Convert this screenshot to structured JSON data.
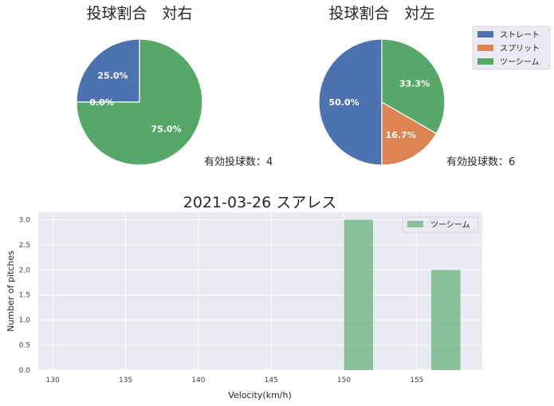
{
  "chart_data": [
    {
      "type": "pie",
      "title": "投球割合　対右",
      "labels": [
        "ストレート",
        "スプリット",
        "ツーシーム"
      ],
      "values": [
        25.0,
        0.0,
        75.0
      ],
      "value_labels": [
        "25.0%",
        "0.0%",
        "75.0%"
      ],
      "note": "有効投球数：4",
      "colors": [
        "#4c72b0",
        "#dd8452",
        "#55a868"
      ]
    },
    {
      "type": "pie",
      "title": "投球割合　対左",
      "labels": [
        "ストレート",
        "スプリット",
        "ツーシーム"
      ],
      "values": [
        50.0,
        16.7,
        33.3
      ],
      "value_labels": [
        "50.0%",
        "16.7%",
        "33.3%"
      ],
      "note": "有効投球数：6",
      "colors": [
        "#4c72b0",
        "#dd8452",
        "#55a868"
      ],
      "legend": {
        "placement": "top-right",
        "entries": [
          "ストレート",
          "スプリット",
          "ツーシーム"
        ]
      }
    },
    {
      "type": "bar",
      "title": "2021-03-26 スアレス",
      "xlabel": "Velocity(km/h)",
      "ylabel": "Number of pitches",
      "xlim": [
        129,
        159.5
      ],
      "ylim": [
        0,
        3.15
      ],
      "xticks": [
        130,
        135,
        140,
        145,
        150,
        155
      ],
      "yticks": [
        0.0,
        0.5,
        1.0,
        1.5,
        2.0,
        2.5,
        3.0
      ],
      "series": [
        {
          "name": "ツーシーム",
          "color": "#55a868",
          "bars": [
            {
              "x0": 150,
              "x1": 152,
              "value": 3
            },
            {
              "x0": 156,
              "x1": 158,
              "value": 2
            }
          ]
        }
      ],
      "grid": true,
      "legend": {
        "placement": "top-right",
        "entries": [
          "ツーシーム"
        ]
      }
    }
  ]
}
